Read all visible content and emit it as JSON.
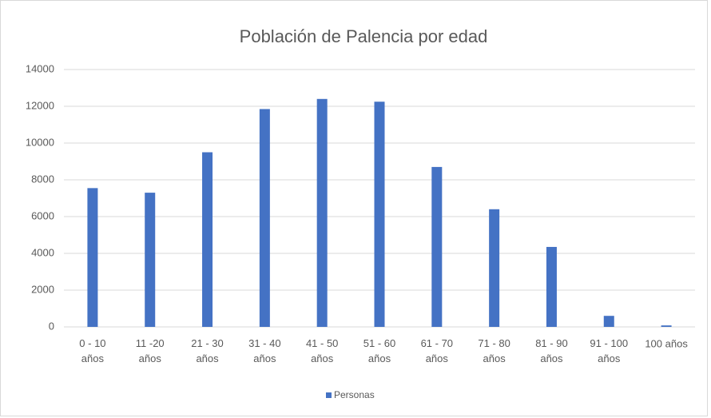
{
  "chart_data": {
    "type": "bar",
    "title": "Población de Palencia por edad",
    "categories": [
      "0 - 10 años",
      "11 -20 años",
      "21 - 30 años",
      "31 - 40 años",
      "41 - 50 años",
      "51 - 60 años",
      "61 - 70 años",
      "71 - 80 años",
      "81 - 90 años",
      "91 - 100 años",
      "100 años"
    ],
    "series": [
      {
        "name": "Personas",
        "color": "#4472c4",
        "values": [
          7550,
          7300,
          9500,
          11850,
          12400,
          12250,
          8700,
          6400,
          4350,
          600,
          80
        ]
      }
    ],
    "ylim": [
      0,
      14000
    ],
    "yticks": [
      0,
      2000,
      4000,
      6000,
      8000,
      10000,
      12000,
      14000
    ],
    "grid": true,
    "legend": "bottom"
  }
}
